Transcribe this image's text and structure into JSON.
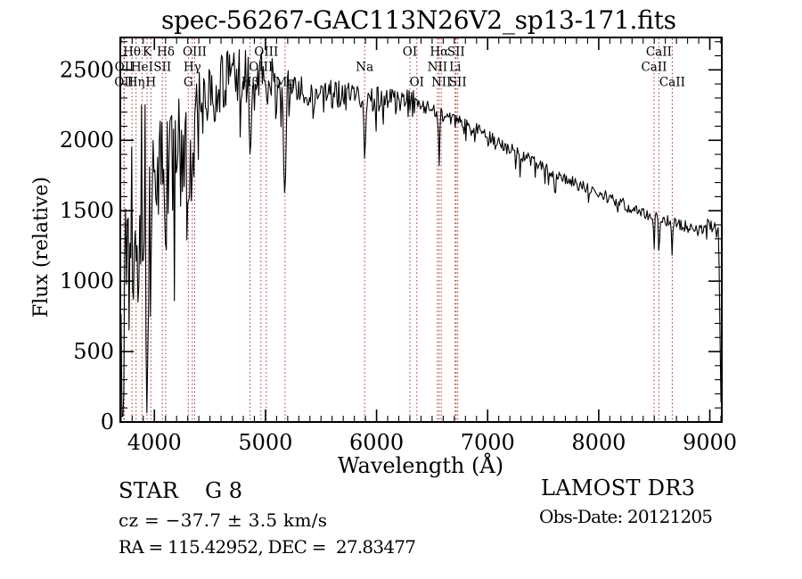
{
  "title": "spec-56267-GAC113N26V2_sp13-171.fits",
  "annotations": {
    "classification": "STAR",
    "subclass": "G8",
    "cz": "cz = −37.7 ± 3.5 km/s",
    "ra_dec": "RA = 115.42952, DEC =  27.83477",
    "survey": "LAMOST DR3",
    "obs_date": "Obs-Date: 20121205"
  },
  "chart_data": {
    "type": "line",
    "title": "spec-56267-GAC113N26V2_sp13-171.fits",
    "xlabel": "Wavelength (Å)",
    "ylabel": "Flux (relative)",
    "xlim": [
      3693,
      9108
    ],
    "ylim": [
      0,
      2730
    ],
    "grid": false,
    "x_tick_values": [
      4000,
      5000,
      6000,
      7000,
      8000,
      9000
    ],
    "x_tick_labels": [
      "4000",
      "5000",
      "6000",
      "7000",
      "8000",
      "9000"
    ],
    "x_minor_tick_step": 100,
    "y_tick_values": [
      0,
      500,
      1000,
      1500,
      2000,
      2500
    ],
    "y_tick_labels": [
      "0",
      "500",
      "1000",
      "1500",
      "2000",
      "2500"
    ],
    "y_minor_tick_step": 100,
    "line_color": "#000000",
    "marker_line_color": "#9e2f2f",
    "series": [
      {
        "name": "spectrum-flux",
        "sample_step_angstrom": 8,
        "noise_seed": 13,
        "envelope_points": [
          [
            3700,
            650
          ],
          [
            3705,
            280
          ],
          [
            3712,
            1100
          ],
          [
            3725,
            900
          ],
          [
            3745,
            1350
          ],
          [
            3770,
            1300
          ],
          [
            3800,
            1550
          ],
          [
            3850,
            1560
          ],
          [
            3900,
            1650
          ],
          [
            3950,
            1620
          ],
          [
            4000,
            1760
          ],
          [
            4060,
            1800
          ],
          [
            4120,
            1850
          ],
          [
            4200,
            1900
          ],
          [
            4280,
            1950
          ],
          [
            4360,
            2060
          ],
          [
            4420,
            2200
          ],
          [
            4500,
            2300
          ],
          [
            4600,
            2400
          ],
          [
            4730,
            2460
          ],
          [
            4800,
            2420
          ],
          [
            4900,
            2430
          ],
          [
            5000,
            2400
          ],
          [
            5100,
            2360
          ],
          [
            5200,
            2340
          ],
          [
            5300,
            2360
          ],
          [
            5450,
            2330
          ],
          [
            5600,
            2330
          ],
          [
            5750,
            2310
          ],
          [
            5900,
            2300
          ],
          [
            6000,
            2300
          ],
          [
            6150,
            2280
          ],
          [
            6300,
            2255
          ],
          [
            6450,
            2230
          ],
          [
            6563,
            2200
          ],
          [
            6700,
            2150
          ],
          [
            6800,
            2110
          ],
          [
            6900,
            2070
          ],
          [
            7000,
            2020
          ],
          [
            7150,
            1960
          ],
          [
            7300,
            1890
          ],
          [
            7450,
            1830
          ],
          [
            7600,
            1765
          ],
          [
            7750,
            1710
          ],
          [
            7900,
            1655
          ],
          [
            8050,
            1605
          ],
          [
            8200,
            1555
          ],
          [
            8350,
            1505
          ],
          [
            8500,
            1460
          ],
          [
            8650,
            1425
          ],
          [
            8800,
            1385
          ],
          [
            8900,
            1355
          ],
          [
            8980,
            1405
          ],
          [
            9040,
            1380
          ],
          [
            9078,
            1340
          ],
          [
            9088,
            950
          ],
          [
            9094,
            420
          ],
          [
            9100,
            140
          ]
        ],
        "absorption_features": [
          [
            3933,
            900,
            20
          ],
          [
            3968,
            800,
            20
          ],
          [
            4102,
            700,
            16
          ],
          [
            4305,
            700,
            28
          ],
          [
            4341,
            450,
            14
          ],
          [
            4861,
            650,
            16
          ],
          [
            5175,
            750,
            20
          ],
          [
            5430,
            250,
            10
          ],
          [
            5893,
            480,
            16
          ],
          [
            6563,
            380,
            13
          ],
          [
            6870,
            90,
            12
          ],
          [
            7605,
            110,
            16
          ],
          [
            8498,
            260,
            11
          ],
          [
            8542,
            300,
            11
          ],
          [
            8662,
            250,
            11
          ]
        ],
        "noise_segments": [
          [
            3700,
            3800,
            880
          ],
          [
            3800,
            3990,
            740
          ],
          [
            3990,
            4420,
            400
          ],
          [
            4420,
            5250,
            220
          ],
          [
            5250,
            6350,
            105
          ],
          [
            6350,
            7400,
            58
          ],
          [
            7400,
            9080,
            42
          ],
          [
            9080,
            9101,
            25
          ]
        ]
      }
    ],
    "spectral_lines": [
      {
        "name": "OII",
        "wavelength": 3726,
        "row": 3
      },
      {
        "name": "OII",
        "wavelength": 3729,
        "row": 2
      },
      {
        "name": "Hθ",
        "wavelength": 3798,
        "row": 1
      },
      {
        "name": "Hη",
        "wavelength": 3835,
        "row": 3
      },
      {
        "name": "HeI",
        "wavelength": 3889,
        "row": 2
      },
      {
        "name": "K",
        "wavelength": 3934,
        "row": 1
      },
      {
        "name": "H",
        "wavelength": 3968,
        "row": 3
      },
      {
        "name": "SII",
        "wavelength": 4072,
        "row": 2
      },
      {
        "name": "Hδ",
        "wavelength": 4102,
        "row": 1
      },
      {
        "name": "G",
        "wavelength": 4305,
        "row": 3
      },
      {
        "name": "Hγ",
        "wavelength": 4341,
        "row": 2
      },
      {
        "name": "OIII",
        "wavelength": 4363,
        "row": 1
      },
      {
        "name": "Hβ",
        "wavelength": 4861,
        "row": 3
      },
      {
        "name": "OIII",
        "wavelength": 4959,
        "row": 2
      },
      {
        "name": "OIII",
        "wavelength": 5007,
        "row": 1
      },
      {
        "name": "Mg",
        "wavelength": 5176,
        "row": 3
      },
      {
        "name": "Na",
        "wavelength": 5893,
        "row": 2
      },
      {
        "name": "OI",
        "wavelength": 6300,
        "row": 1
      },
      {
        "name": "OI",
        "wavelength": 6363,
        "row": 3
      },
      {
        "name": "NII",
        "wavelength": 6548,
        "row": 2
      },
      {
        "name": "Hα",
        "wavelength": 6563,
        "row": 1
      },
      {
        "name": "NII",
        "wavelength": 6583,
        "row": 3
      },
      {
        "name": "Li",
        "wavelength": 6708,
        "row": 2
      },
      {
        "name": "SII",
        "wavelength": 6716,
        "row": 1
      },
      {
        "name": "SII",
        "wavelength": 6731,
        "row": 3
      },
      {
        "name": "CaII",
        "wavelength": 8498,
        "row": 2
      },
      {
        "name": "CaII",
        "wavelength": 8542,
        "row": 1
      },
      {
        "name": "CaII",
        "wavelength": 8662,
        "row": 3
      }
    ]
  }
}
